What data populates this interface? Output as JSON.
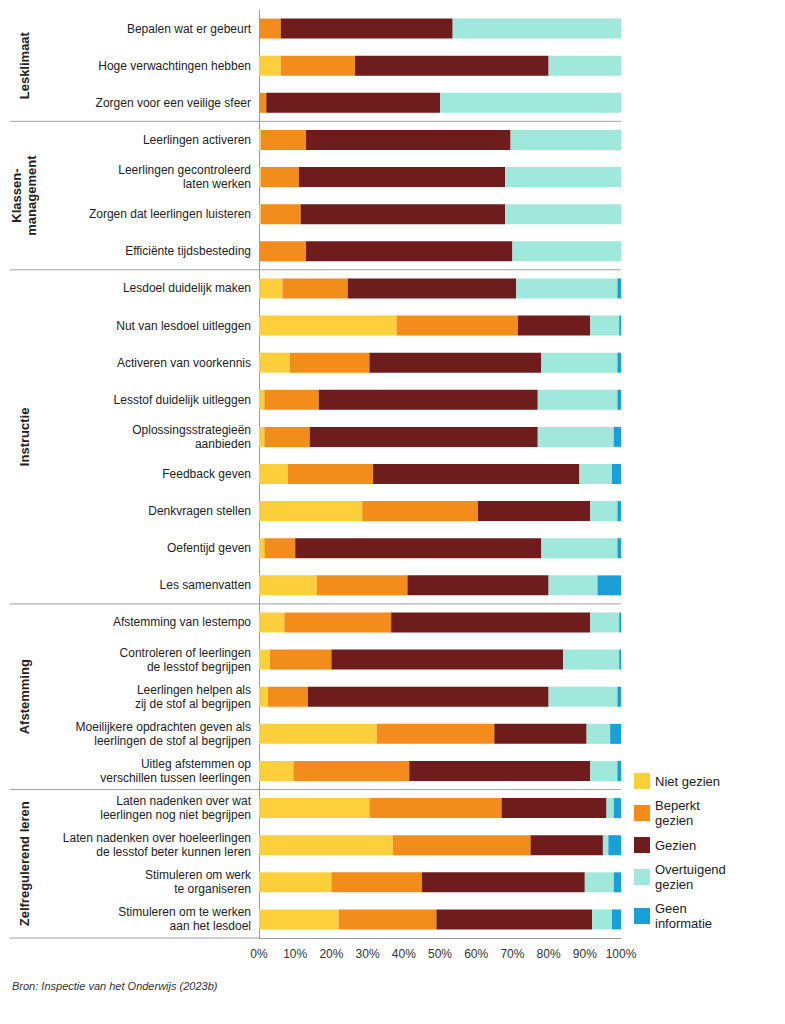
{
  "chart_data": {
    "type": "bar",
    "orientation": "horizontal",
    "stacked": true,
    "grid": false,
    "data_labels": false,
    "legend": "lower right",
    "source": "Bron: Inspectie van het Onderwijs (2023b)",
    "categories": [
      "Bepalen wat er gebeurt",
      "Hoge verwachtingen hebben",
      "Zorgen voor een veilige sfeer",
      "Leerlingen activeren",
      "Leerlingen gecontroleerd\nlaten werken",
      "Zorgen dat leerlingen luisteren",
      "Efficiënte tijdsbesteding",
      "Lesdoel duidelijk maken",
      "Nut van lesdoel uitleggen",
      "Activeren van voorkennis",
      "Lesstof duidelijk uitleggen",
      "Oplossingsstrategieën\naanbieden",
      "Feedback geven",
      "Denkvragen stellen",
      "Oefentijd geven",
      "Les samenvatten",
      "Afstemming van lestempo",
      "Controleren of leerlingen\nde lesstof begrijpen",
      "Leerlingen helpen als\nzij de stof al begrijpen",
      "Moeilijkere opdrachten geven als\nleerlingen de stof al begrijpen",
      "Uitleg afstemmen op\nverschillen tussen leerlingen",
      "Laten nadenken over wat\nleerlingen nog niet begrijpen",
      "Laten nadenken over hoeleerlingen\nde lesstof beter kunnen leren",
      "Stimuleren om werk\nte organiseren",
      "Stimuleren om te werken\naan het lesdoel"
    ],
    "groups": [
      {
        "label": "Lesklimaat",
        "size": 3
      },
      {
        "label": "Klassen-\nmanagement",
        "size": 4
      },
      {
        "label": "Instructie",
        "size": 9
      },
      {
        "label": "Afstemming",
        "size": 5
      },
      {
        "label": "Zelfregulerend leren",
        "size": 4
      }
    ],
    "xlim": [
      0,
      100
    ],
    "xticks": [
      {
        "value": 0,
        "label": "0%"
      },
      {
        "value": 10,
        "label": "10%"
      },
      {
        "value": 20,
        "label": "20%"
      },
      {
        "value": 30,
        "label": "30%"
      },
      {
        "value": 40,
        "label": "40%"
      },
      {
        "value": 50,
        "label": "50%"
      },
      {
        "value": 60,
        "label": "60%"
      },
      {
        "value": 70,
        "label": "70%"
      },
      {
        "value": 80,
        "label": "80%"
      },
      {
        "value": 90,
        "label": "90%"
      },
      {
        "value": 100,
        "label": "100%"
      }
    ],
    "series": [
      {
        "name": "Niet gezien",
        "color": "#fdd03b",
        "values": [
          0,
          6,
          0,
          0.5,
          0.5,
          0.5,
          0,
          6.5,
          38,
          8.5,
          1.5,
          1.5,
          8,
          28.5,
          1.5,
          16,
          7,
          3,
          2.5,
          32.5,
          9.5,
          30.5,
          37,
          20,
          22
        ]
      },
      {
        "name": "Beperkt\ngezien",
        "color": "#f28c1b",
        "values": [
          6,
          20.5,
          2,
          12.5,
          10.5,
          11,
          13,
          18,
          33.5,
          22,
          15,
          12.5,
          23.5,
          32,
          8.5,
          25,
          29.5,
          17,
          11,
          32.5,
          32,
          36.5,
          38,
          25,
          27
        ]
      },
      {
        "name": "Gezien",
        "color": "#6e1c1c",
        "values": [
          47.5,
          53.5,
          48,
          56.5,
          57,
          56.5,
          57,
          46.5,
          20,
          47.5,
          60.5,
          63,
          57,
          31,
          68,
          39,
          55,
          64,
          66.5,
          25.5,
          50,
          29,
          20,
          45,
          43
        ]
      },
      {
        "name": "Overtuigend\ngezien",
        "color": "#a0e8dc",
        "values": [
          46.5,
          20,
          50,
          30.5,
          32,
          32,
          30,
          28,
          8,
          21,
          22,
          21,
          9,
          7.5,
          21,
          13.5,
          8,
          15.5,
          19,
          6.5,
          7.5,
          2,
          1.5,
          8,
          5.5
        ]
      },
      {
        "name": "Geen\ninformatie",
        "color": "#1aa0d8",
        "values": [
          0,
          0,
          0,
          0,
          0,
          0,
          0,
          1,
          0.5,
          1,
          1,
          2,
          2.5,
          1,
          1,
          6.5,
          0.5,
          0.5,
          1,
          3,
          1,
          2,
          3.5,
          2,
          2.5
        ]
      }
    ]
  }
}
